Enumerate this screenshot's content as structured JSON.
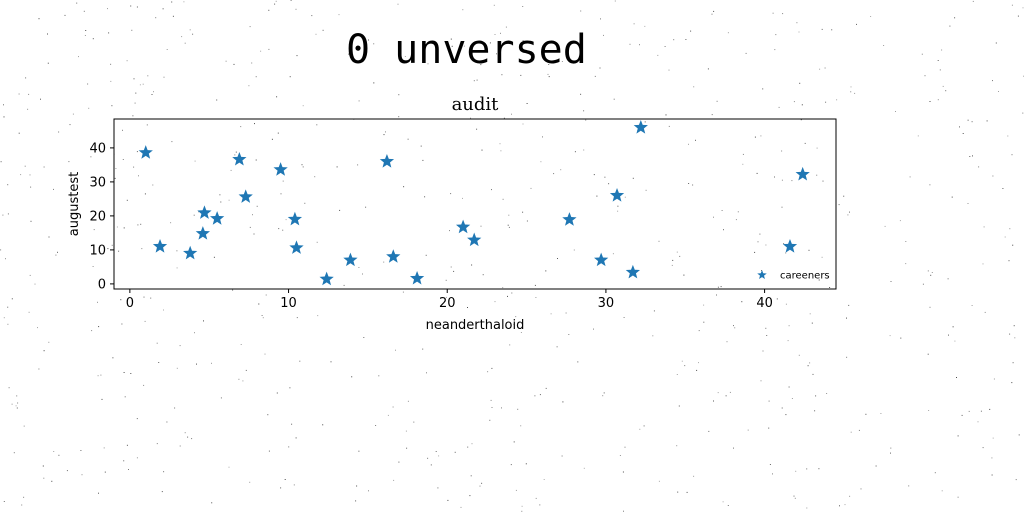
{
  "figure": {
    "suptitle": "0 unversed"
  },
  "chart_data": {
    "type": "scatter",
    "title": "audit",
    "xlabel": "neanderthaloid",
    "ylabel": "augustest",
    "xlim": [
      -1,
      44.5
    ],
    "ylim": [
      -1.5,
      48.5
    ],
    "xticks": [
      0,
      10,
      20,
      30,
      40
    ],
    "yticks": [
      0,
      10,
      20,
      30,
      40
    ],
    "grid": false,
    "legend": {
      "position": "lower-right",
      "entries": [
        "careeners"
      ]
    },
    "series": [
      {
        "name": "careeners",
        "marker": "star",
        "color": "#1f77b4",
        "x": [
          1.0,
          1.9,
          3.8,
          4.6,
          4.7,
          5.5,
          6.9,
          7.3,
          9.5,
          10.4,
          10.5,
          12.4,
          13.9,
          16.2,
          16.6,
          18.1,
          21.0,
          21.7,
          27.7,
          29.7,
          30.7,
          31.7,
          32.2,
          41.6,
          42.4
        ],
        "y": [
          38.6,
          11.0,
          9.0,
          14.8,
          20.9,
          19.2,
          36.6,
          25.6,
          33.6,
          19.0,
          10.6,
          1.4,
          7.0,
          36.0,
          8.0,
          1.6,
          16.7,
          12.9,
          18.9,
          7.0,
          26.0,
          3.4,
          46.0,
          11.0,
          32.2
        ]
      }
    ]
  }
}
